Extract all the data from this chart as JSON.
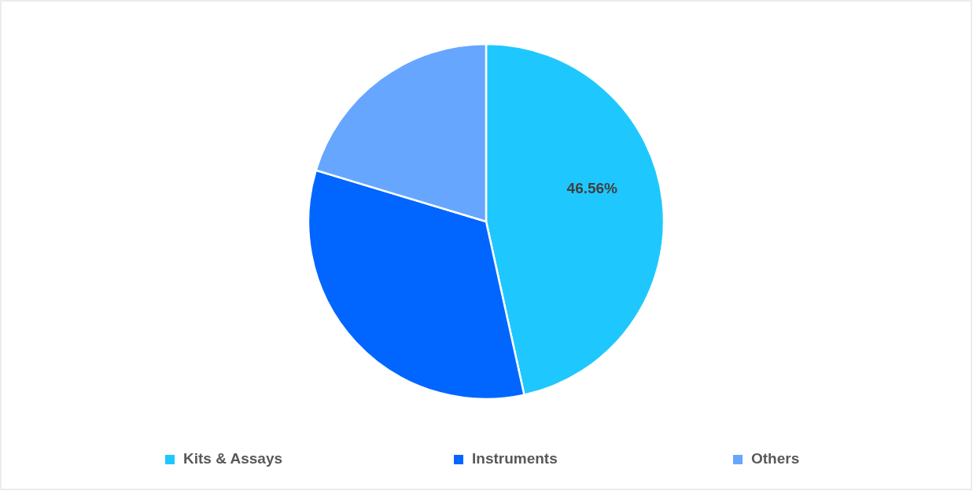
{
  "chart_data": {
    "type": "pie",
    "categories": [
      "Kits & Assays",
      "Instruments",
      "Others"
    ],
    "values": [
      46.56,
      33.1,
      20.34
    ],
    "colors": [
      "#1ec8fe",
      "#0066ff",
      "#66a6ff"
    ],
    "value_labels": [
      "46.56%",
      null,
      null
    ],
    "legend": "bottom"
  }
}
